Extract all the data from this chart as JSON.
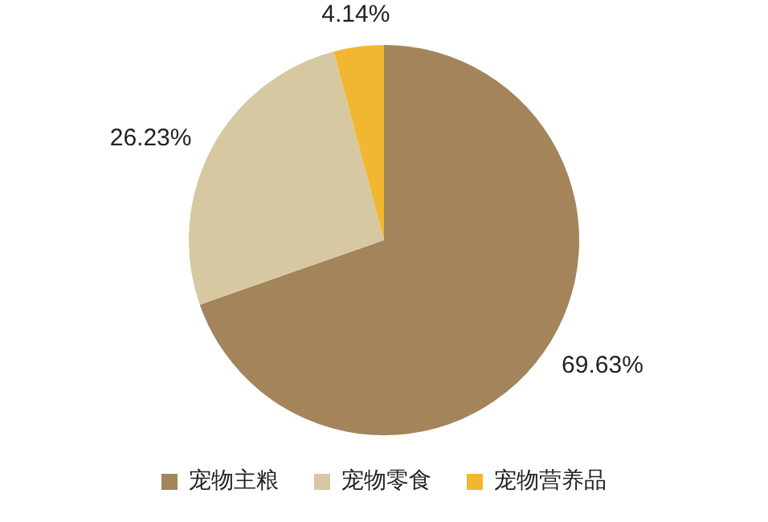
{
  "chart_data": {
    "type": "pie",
    "categories": [
      "宠物主粮",
      "宠物零食",
      "宠物营养品"
    ],
    "values": [
      69.63,
      26.23,
      4.14
    ],
    "value_labels": [
      "69.63%",
      "26.23%",
      "4.14%"
    ],
    "colors": [
      "#a4845b",
      "#d6c8a0",
      "#f2b731"
    ],
    "legend": "bottom"
  }
}
